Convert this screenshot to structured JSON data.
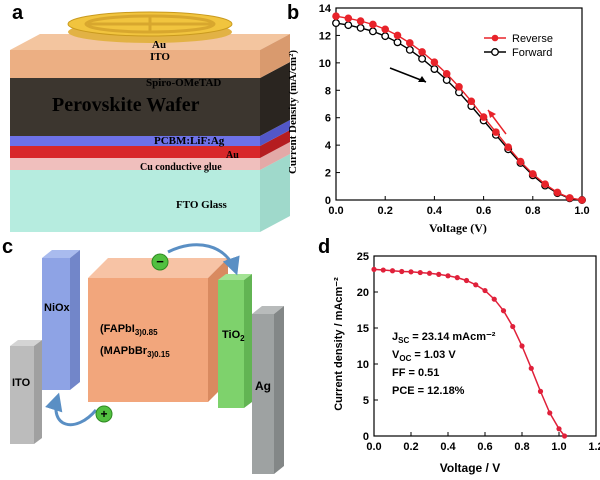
{
  "panel_labels": {
    "a": "a",
    "b": "b",
    "c": "c",
    "d": "d"
  },
  "panel_a": {
    "layers": {
      "au_top": "Au",
      "ito": "ITO",
      "spiro": "Spiro-OMeTAD",
      "perovskite": "Perovskite Wafer",
      "pcbm": "PCBM:LiF:Ag",
      "au_bottom": "Au",
      "cu_glue": "Cu conductive glue",
      "fto": "FTO Glass"
    },
    "colors": {
      "spiro": "#ecaf83",
      "perovskite": "#3c362f",
      "pcbm": "#6d72e8",
      "au_red": "#d8282a",
      "cu_glue": "#f0bfbd",
      "fto": "#b6ecdf",
      "au_disk": "#f1c43e"
    }
  },
  "panel_b": {
    "xlabel": "Voltage (V)",
    "ylabel": "Current Density (mA/cm²)",
    "legend": [
      "Reverse",
      "Forward"
    ],
    "colors": {
      "reverse": "#e8232a",
      "forward": "#000000"
    },
    "xticks": [
      "0.0",
      "0.2",
      "0.4",
      "0.6",
      "0.8",
      "1.0"
    ],
    "yticks": [
      "0",
      "2",
      "4",
      "6",
      "8",
      "10",
      "12",
      "14"
    ]
  },
  "panel_c": {
    "nio": "NiOx",
    "ito": "ITO",
    "absorber_line1": "(FAPbI",
    "absorber_sub1": "3",
    "absorber_sub1b": ")0.85",
    "absorber_line2": "(MAPbBr",
    "absorber_sub2": "3",
    "absorber_sub2b": ")0.15",
    "tio2": "TiO",
    "tio2_sub": "2",
    "ag": "Ag",
    "minus": "−",
    "plus": "+",
    "colors": {
      "ito": "#bcbcbc",
      "nio": "#8ea3e5",
      "cube": "#f2a67c",
      "tio2": "#7ed26c",
      "ag": "#9ea2a2"
    }
  },
  "panel_d": {
    "xlabel": "Voltage / V",
    "ylabel": "Current density / mAcm⁻²",
    "jsc": "J",
    "jsc_sub": "SC",
    "jsc_val": " = 23.14 mAcm⁻²",
    "voc": "V",
    "voc_sub": "OC",
    "voc_val": " = 1.03 V",
    "ff": "FF = 0.51",
    "pce": "PCE = 12.18%",
    "color": "#e0203a",
    "xticks": [
      "0.0",
      "0.2",
      "0.4",
      "0.6",
      "0.8",
      "1.0",
      "1.2"
    ],
    "yticks": [
      "0",
      "5",
      "10",
      "15",
      "20",
      "25"
    ]
  },
  "chart_data": [
    {
      "type": "line",
      "panel": "b",
      "xlabel": "Voltage (V)",
      "ylabel": "Current Density (mA/cm²)",
      "xlim": [
        0.0,
        1.0
      ],
      "ylim": [
        0,
        14
      ],
      "legend_position": "top-right",
      "series": [
        {
          "name": "Reverse",
          "x": [
            0.0,
            0.05,
            0.1,
            0.15,
            0.2,
            0.25,
            0.3,
            0.35,
            0.4,
            0.45,
            0.5,
            0.55,
            0.6,
            0.65,
            0.7,
            0.75,
            0.8,
            0.85,
            0.9,
            0.95,
            1.0
          ],
          "y": [
            13.4,
            13.25,
            13.05,
            12.8,
            12.45,
            12.0,
            11.45,
            10.8,
            10.05,
            9.2,
            8.25,
            7.2,
            6.05,
            4.95,
            3.85,
            2.8,
            1.9,
            1.15,
            0.55,
            0.15,
            0.0
          ]
        },
        {
          "name": "Forward",
          "x": [
            0.0,
            0.05,
            0.1,
            0.15,
            0.2,
            0.25,
            0.3,
            0.35,
            0.4,
            0.45,
            0.5,
            0.55,
            0.6,
            0.65,
            0.7,
            0.75,
            0.8,
            0.85,
            0.9,
            0.95,
            1.0
          ],
          "y": [
            12.9,
            12.75,
            12.55,
            12.3,
            11.95,
            11.5,
            10.95,
            10.3,
            9.55,
            8.75,
            7.85,
            6.85,
            5.8,
            4.75,
            3.7,
            2.7,
            1.8,
            1.05,
            0.5,
            0.12,
            0.0
          ]
        }
      ]
    },
    {
      "type": "line",
      "panel": "d",
      "xlabel": "Voltage / V",
      "ylabel": "Current density / mAcm⁻²",
      "xlim": [
        0.0,
        1.2
      ],
      "ylim": [
        0,
        25
      ],
      "series": [
        {
          "x": [
            0.0,
            0.05,
            0.1,
            0.15,
            0.2,
            0.25,
            0.3,
            0.35,
            0.4,
            0.45,
            0.5,
            0.55,
            0.6,
            0.65,
            0.7,
            0.75,
            0.8,
            0.85,
            0.9,
            0.95,
            1.0,
            1.03
          ],
          "y": [
            23.14,
            23.05,
            22.95,
            22.85,
            22.8,
            22.7,
            22.6,
            22.45,
            22.25,
            22.0,
            21.6,
            21.0,
            20.2,
            19.0,
            17.4,
            15.2,
            12.5,
            9.4,
            6.2,
            3.2,
            1.0,
            0.0
          ]
        }
      ]
    }
  ]
}
